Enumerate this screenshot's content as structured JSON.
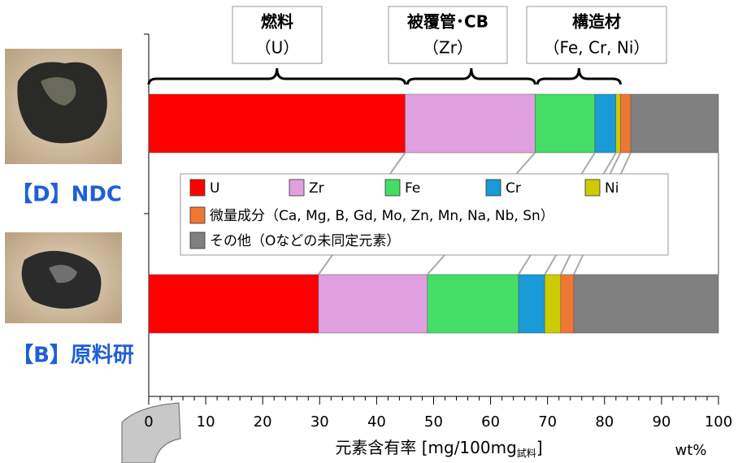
{
  "chart_data": {
    "type": "stacked-bar-horizontal",
    "categories": [
      "【D】NDC",
      "【B】原料研"
    ],
    "series": [
      {
        "name": "U",
        "color": "#ff0000",
        "values": [
          45,
          29.8
        ]
      },
      {
        "name": "Zr",
        "color": "#e0a0e0",
        "values": [
          22.8,
          19.1
        ]
      },
      {
        "name": "Fe",
        "color": "#44dd66",
        "values": [
          10.5,
          16
        ]
      },
      {
        "name": "Cr",
        "color": "#1a9ad6",
        "values": [
          3.7,
          4.6
        ]
      },
      {
        "name": "Ni",
        "color": "#cccc00",
        "values": [
          0.8,
          2.8
        ]
      },
      {
        "name": "微量成分（Ca, Mg, B, Gd, Mo, Zn, Mn, Na, Nb, Sn）",
        "color": "#ee7733",
        "values": [
          1.8,
          2.3
        ]
      },
      {
        "name": "その他（Oなどの未同定元素）",
        "color": "#808080",
        "values": [
          15.4,
          25.4
        ]
      }
    ],
    "xlim": [
      0,
      100
    ],
    "xticks": [
      0,
      10,
      20,
      30,
      40,
      50,
      60,
      70,
      80,
      90,
      100
    ],
    "x_label": "元素含有率 [mg/100mg",
    "x_label_sub": "試料",
    "x_label_end": "]",
    "unit_label": "wt%",
    "groups": [
      {
        "title": "燃料",
        "subtitle": "（U）"
      },
      {
        "title": "被覆管･CB",
        "subtitle": "（Zr）"
      },
      {
        "title": "構造材",
        "subtitle": "（Fe, Cr, Ni）"
      }
    ]
  }
}
